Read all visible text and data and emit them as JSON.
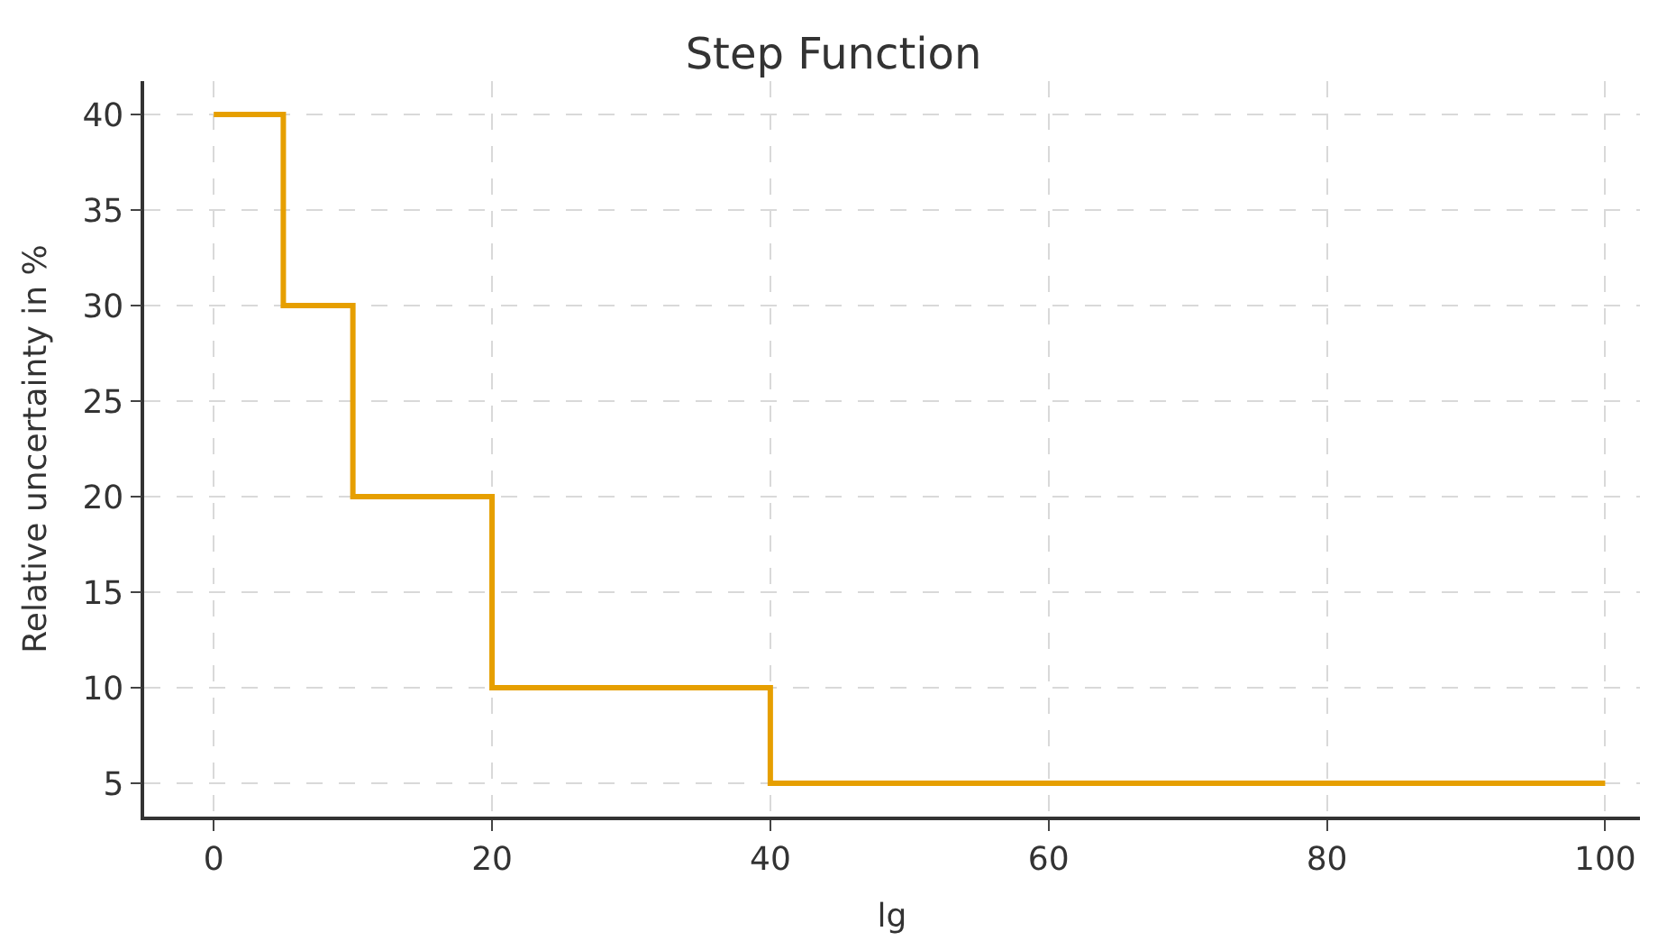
{
  "chart_data": {
    "type": "step",
    "title": "Step Function",
    "xlabel": "lg",
    "ylabel": "Relative uncertainty in %",
    "x": [
      0,
      5,
      10,
      20,
      40,
      100
    ],
    "series": [
      {
        "color": "#e69f00",
        "values": [
          40,
          30,
          20,
          10,
          5,
          5
        ]
      }
    ],
    "xlim": [
      -5,
      102.5
    ],
    "xticks": [
      0,
      20,
      40,
      60,
      80,
      100
    ],
    "ylim": [
      3.25,
      41.75
    ],
    "yticks": [
      5,
      10,
      15,
      20,
      25,
      30,
      35,
      40
    ],
    "grid": true,
    "marker": "none",
    "line_style": "solid"
  }
}
